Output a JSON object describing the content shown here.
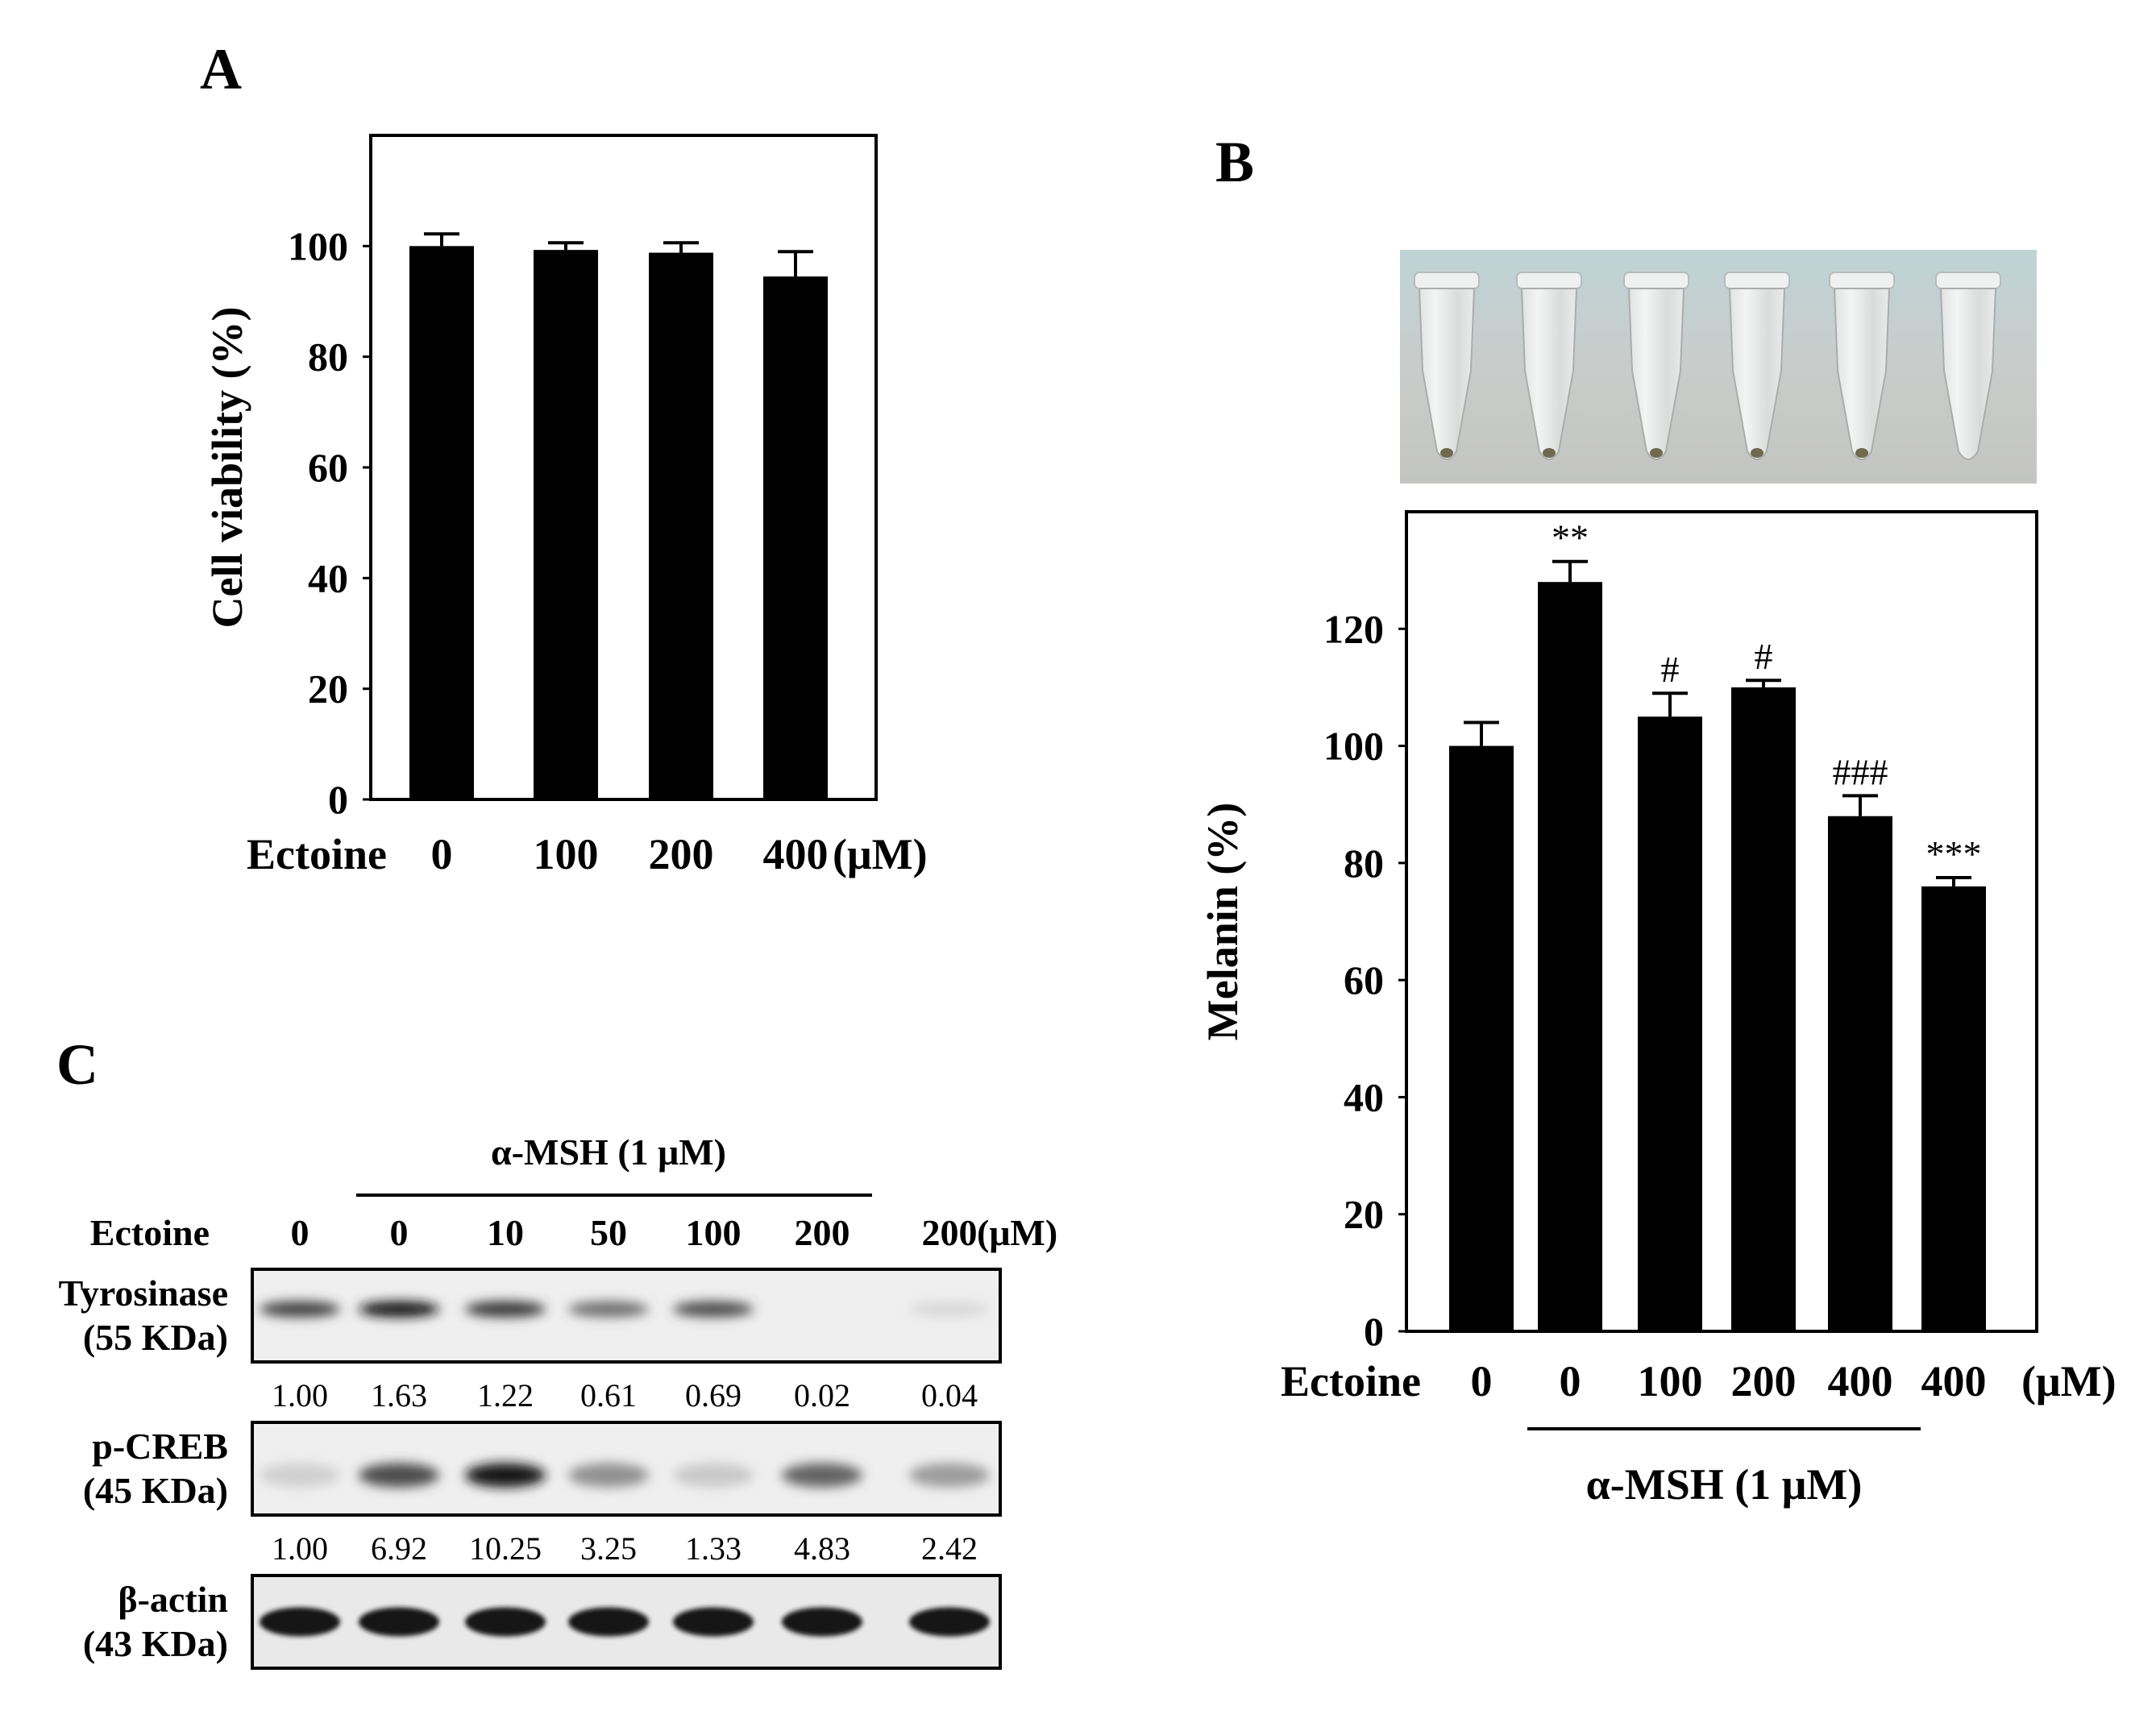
{
  "panels": {
    "A": {
      "letter": "A"
    },
    "B": {
      "letter": "B"
    },
    "C": {
      "letter": "C"
    }
  },
  "chart_data": [
    {
      "panel": "A",
      "type": "bar",
      "ylabel": "Cell viability (%)",
      "xlabel": "",
      "row_label": "Ectoine",
      "categories": [
        "0",
        "100",
        "200",
        "400"
      ],
      "unit": "(μM)",
      "values": [
        100,
        99.3,
        98.8,
        94.5
      ],
      "errors": [
        2.2,
        1.3,
        1.8,
        4.5
      ],
      "ylim": [
        0,
        120
      ],
      "yticks": [
        0,
        20,
        40,
        60,
        80,
        100
      ],
      "grid": false
    },
    {
      "panel": "B",
      "type": "bar",
      "ylabel": "Melanin (%)",
      "xlabel": "",
      "row_label": "Ectoine",
      "categories": [
        "0",
        "0",
        "100",
        "200",
        "400",
        "400"
      ],
      "unit": "(μM)",
      "group_label": "α-MSH (1 μM)",
      "values": [
        100,
        128,
        105,
        110,
        88,
        76
      ],
      "errors": [
        4,
        3.5,
        4,
        1.2,
        3.5,
        1.5
      ],
      "annotations": [
        "",
        "**",
        "#",
        "#",
        "###",
        "***"
      ],
      "ylim": [
        0,
        140
      ],
      "yticks": [
        0,
        20,
        40,
        60,
        80,
        100,
        120
      ],
      "grid": false
    }
  ],
  "blot": {
    "header": "α-MSH (1 μM)",
    "ectoine_label": "Ectoine",
    "ectoine_values": [
      "0",
      "0",
      "10",
      "50",
      "100",
      "200",
      "200"
    ],
    "unit": "(μM)",
    "rows": [
      {
        "label1": "Tyrosinase",
        "label2": "(55 KDa)",
        "quant": [
          "1.00",
          "1.63",
          "1.22",
          "0.61",
          "0.69",
          "0.02",
          "0.04"
        ],
        "intensity": [
          0.75,
          0.95,
          0.8,
          0.55,
          0.7,
          0.0,
          0.08
        ]
      },
      {
        "label1": "p-CREB",
        "label2": "(45 KDa)",
        "quant": [
          "1.00",
          "6.92",
          "10.25",
          "3.25",
          "1.33",
          "4.83",
          "2.42"
        ],
        "intensity": [
          0.12,
          0.7,
          0.95,
          0.4,
          0.15,
          0.6,
          0.35
        ]
      },
      {
        "label1": "β-actin",
        "label2": "(43 KDa)",
        "quant": [],
        "intensity": [
          0.95,
          0.95,
          0.95,
          0.95,
          0.95,
          0.95,
          0.95
        ]
      }
    ]
  },
  "colors": {
    "bar": "#000000",
    "frame": "#000000",
    "photo_bg": "#c9cfcc"
  }
}
